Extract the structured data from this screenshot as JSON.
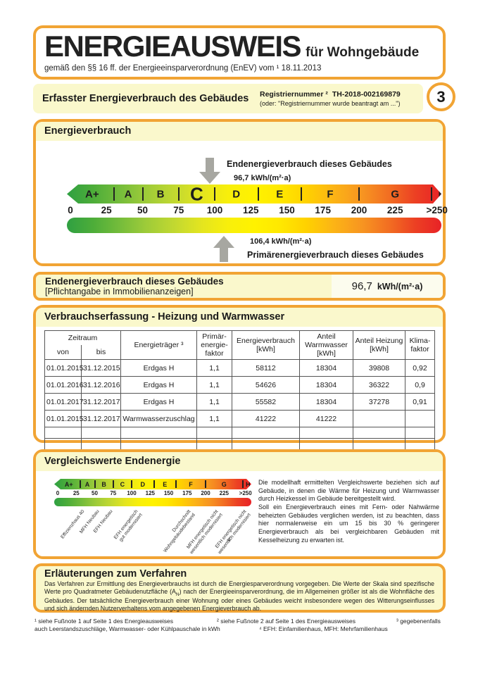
{
  "header": {
    "title": "ENERGIEAUSWEIS",
    "title_suffix": "für Wohngebäude",
    "subtitle": "gemäß den §§ 16 ff. der Energieeinsparverordnung (EnEV) vom ¹  18.11.2013"
  },
  "section_band": {
    "title": "Erfasster Energieverbrauch des Gebäudes",
    "registry_label": "Registriernummer ²",
    "registry_value": "TH-2018-002169879",
    "registry_alt": "(oder: \"Registriernummer wurde beantragt am ...\")",
    "page_number": "3"
  },
  "energieverbrauch": {
    "title": "Energieverbrauch",
    "end_label": "Endenergieverbrauch dieses Gebäudes",
    "end_value": "96,7 kWh/(m²·a)",
    "primary_value": "106,4 kWh/(m²·a)",
    "primary_label": "Primärenergieverbrauch dieses Gebäudes"
  },
  "chart_data": {
    "type": "scale",
    "title": "Energieverbrauch",
    "unit": "kWh/(m²·a)",
    "current_class": "C",
    "classes": [
      {
        "label": "A+",
        "from": 0,
        "to": 30
      },
      {
        "label": "A",
        "from": 30,
        "to": 50
      },
      {
        "label": "B",
        "from": 50,
        "to": 75
      },
      {
        "label": "C",
        "from": 75,
        "to": 100
      },
      {
        "label": "D",
        "from": 100,
        "to": 130
      },
      {
        "label": "E",
        "from": 130,
        "to": 160
      },
      {
        "label": "F",
        "from": 160,
        "to": 200
      },
      {
        "label": "G",
        "from": 200,
        "to": 250
      },
      {
        "label": "H",
        "from": 250,
        "to": 265
      }
    ],
    "tick_labels": [
      "0",
      "25",
      "50",
      "75",
      "100",
      "125",
      "150",
      "175",
      "200",
      "225",
      ">250"
    ],
    "tick_values": [
      0,
      25,
      50,
      75,
      100,
      125,
      150,
      175,
      200,
      225,
      254
    ],
    "markers": [
      {
        "label": "Endenergieverbrauch dieses Gebäudes",
        "value": 96.7
      },
      {
        "label": "Primärenergieverbrauch dieses Gebäudes",
        "value": 106.4
      }
    ],
    "comparison_values": [
      {
        "label": "Effizienzhaus 40",
        "value": 32
      },
      {
        "label": "MFH Neubau",
        "value": 52
      },
      {
        "label": "EFH Neubau",
        "value": 70
      },
      {
        "label": "EFH energetisch\ngut modernisiert",
        "value": 105
      },
      {
        "label": "Durchschnitt\nWohngebäudebestand",
        "value": 176
      },
      {
        "label": "MFH energetisch nicht\nwesentlich modernisiert",
        "value": 213
      },
      {
        "label": "EFH energetisch nicht\nwesentlich modernisiert",
        "value": 251
      }
    ],
    "gradient_colors": [
      "#2FA042",
      "#4DAD39",
      "#74BC3B",
      "#9DCB39",
      "#C3D930",
      "#E4E51F",
      "#F8EF0B",
      "#FFF200",
      "#FFE800",
      "#FFD100",
      "#FCB515",
      "#F79421",
      "#F26E22",
      "#EC4023",
      "#E82227"
    ]
  },
  "pflichtangabe": {
    "line1": "Endenergieverbrauch dieses Gebäudes",
    "line2": "[Pflichtangabe in Immobilienanzeigen]",
    "value": "96,7",
    "unit": "kWh/(m²·a)"
  },
  "verbrauchserfassung": {
    "title": "Verbrauchserfassung - Heizung und Warmwasser",
    "headers": {
      "zeitraum": "Zeitraum",
      "von": "von",
      "bis": "bis",
      "energietraeger": "Energieträger ³",
      "primaerfaktor": "Primär-\nenergie-\nfaktor",
      "energieverbrauch": "Energieverbrauch\n[kWh]",
      "anteil_warmwasser": "Anteil\nWarmwasser\n[kWh]",
      "anteil_heizung": "Anteil Heizung\n[kWh]",
      "klimafaktor": "Klima-\nfaktor"
    },
    "rows": [
      [
        "01.01.2015",
        "31.12.2015",
        "Erdgas H",
        "1,1",
        "58112",
        "18304",
        "39808",
        "0,92"
      ],
      [
        "01.01.2016",
        "31.12.2016",
        "Erdgas H",
        "1,1",
        "54626",
        "18304",
        "36322",
        "0,9"
      ],
      [
        "01.01.2017",
        "31.12.2017",
        "Erdgas H",
        "1,1",
        "55582",
        "18304",
        "37278",
        "0,91"
      ],
      [
        "01.01.2015",
        "31.12.2017",
        "Warmwasserzuschlag",
        "1,1",
        "41222",
        "41222",
        "",
        ""
      ]
    ],
    "empty_rows": 2
  },
  "vergleichswerte": {
    "title": "Vergleichswerte Endenergie",
    "footnote_marker": "4",
    "text1": "Die modellhaft ermittelten Vergleichswerte beziehen sich auf Gebäude, in denen die Wärme für Heizung und Warmwasser durch Heizkessel im Gebäude bereitgestellt wird.",
    "text2": "Soll ein Energieverbrauch eines mit Fern- oder Nahwärme beheizten Gebäudes verglichen werden, ist zu beachten, dass hier normalerweise ein um 15 bis 30 % geringerer Energieverbrauch als bei vergleichbaren Gebäuden mit Kesselheizung zu erwarten ist."
  },
  "erlaeuterungen": {
    "title": "Erläuterungen zum Verfahren",
    "text_pre": "Das Verfahren zur Ermittlung des Energieverbrauchs ist durch die Energiesparverordnung vorgegeben. Die Werte der Skala sind spezifische Werte pro Quadratmeter Gebäudenutzfläche (A",
    "sub": "N",
    "text_post": ") nach der Energieeinsparverordnung, die im Allgemeinen größer ist als die Wohnfläche des Gebäudes. Der tatsächliche Energieverbrauch einer Wohnung oder eines Gebäudes weicht insbesondere wegen des Witterungseinflusses und sich ändernden Nutzerverhaltens vom angegebenen Energieverbrauch ab."
  },
  "footnotes": {
    "fn1": "¹ siehe Fußnote 1 auf Seite 1 des Energieausweises",
    "fn2": "² siehe Fußnote 2 auf Seite 1 des Energieausweises",
    "fn3a": "³ gegebenenfalls",
    "fn3b": "auch Leerstandszuschläge, Warmwasser- oder Kühlpauschale in kWh",
    "fn4": "⁴ EFH: Einfamilienhaus, MFH: Mehrfamilienhaus"
  },
  "colors": {
    "accent_orange": "#F1A434",
    "cream_background": "#FAF8CC",
    "arrow_gray": "#A7A7A1"
  }
}
